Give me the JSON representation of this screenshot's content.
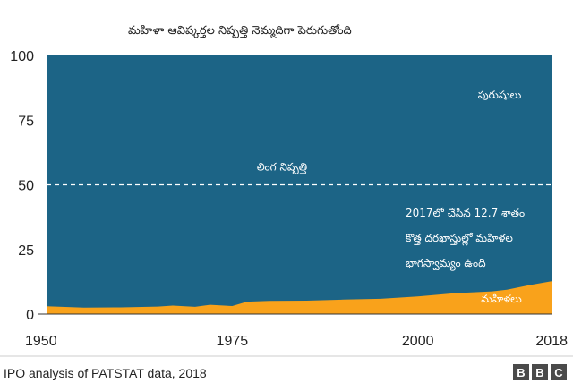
{
  "chart_data": {
    "type": "area",
    "title": "మహిళా ఆవిష్కర్తల నిష్పత్తి నెమ్మదిగా పెరుగుతోంది",
    "x": [
      1950,
      1955,
      1960,
      1965,
      1967,
      1970,
      1972,
      1975,
      1977,
      1980,
      1985,
      1990,
      1995,
      2000,
      2005,
      2010,
      2012,
      2015,
      2018
    ],
    "series": [
      {
        "name": "మహిళలు",
        "color": "#f9a21b",
        "values": [
          3,
          2.5,
          2.6,
          2.9,
          3.3,
          2.8,
          3.6,
          3.1,
          4.8,
          5.1,
          5.2,
          5.6,
          5.9,
          6.8,
          8.1,
          8.8,
          9.4,
          11.2,
          12.7
        ]
      },
      {
        "name": "పురుషులు",
        "color": "#1c6486"
      }
    ],
    "reference_line": {
      "y": 50,
      "label": "లింగ నిష్పత్తి"
    },
    "annotation": [
      "2017లో చేసిన 12.7 శాతం",
      "కొత్త దరఖాస్తుల్లో మహిళల",
      "భాగస్వామ్యం ఉంది"
    ],
    "ylim": [
      0,
      100
    ],
    "yticks": [
      "0",
      "25",
      "50",
      "75",
      "100"
    ],
    "xlim": [
      1950,
      2018
    ],
    "xticks": [
      "1950",
      "1975",
      "2000",
      "2018"
    ],
    "grid": false,
    "source": "IPO analysis of PATSTAT data, 2018",
    "logo": "BBC"
  }
}
